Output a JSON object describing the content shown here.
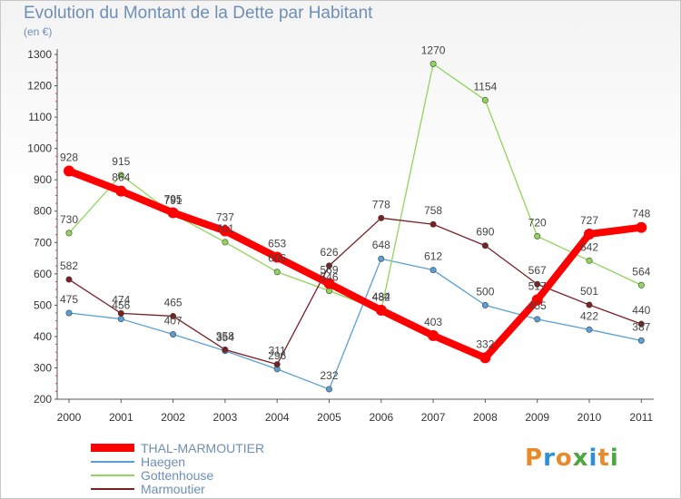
{
  "header": {
    "title": "Evolution du Montant de la Dette par Habitant",
    "subtitle": "(en €)"
  },
  "logo": {
    "text": "Proxiti",
    "colors": [
      "#e88a2a",
      "#2e8fd8",
      "#e88a2a",
      "#4aa83f",
      "#2e8fd8",
      "#e88a2a",
      "#4aa83f"
    ]
  },
  "chart_data": {
    "type": "line",
    "x": [
      "2000",
      "2001",
      "2002",
      "2003",
      "2004",
      "2005",
      "2006",
      "2007",
      "2008",
      "2009",
      "2010",
      "2011"
    ],
    "ylim": [
      200,
      1300
    ],
    "yticks": [
      200,
      300,
      400,
      500,
      600,
      700,
      800,
      900,
      1000,
      1100,
      1200,
      1300
    ],
    "grid": false,
    "legend": "bottom-left",
    "series": [
      {
        "name": "THAL-MARMOUTIER",
        "color": "#ff0000",
        "values": [
          928,
          864,
          795,
          737,
          653,
          569,
          484,
          403,
          332,
          517,
          727,
          748
        ]
      },
      {
        "name": "Haegen",
        "color": "#5a9fd4",
        "values": [
          475,
          456,
          407,
          354,
          296,
          232,
          648,
          612,
          500,
          455,
          422,
          387
        ]
      },
      {
        "name": "Gottenhouse",
        "color": "#8fd55a",
        "values": [
          730,
          915,
          791,
          701,
          606,
          546,
          482,
          1270,
          1154,
          720,
          642,
          564
        ]
      },
      {
        "name": "Marmoutier",
        "color": "#7a1f24",
        "values": [
          582,
          474,
          465,
          358,
          311,
          626,
          778,
          758,
          690,
          567,
          501,
          440
        ]
      }
    ]
  }
}
